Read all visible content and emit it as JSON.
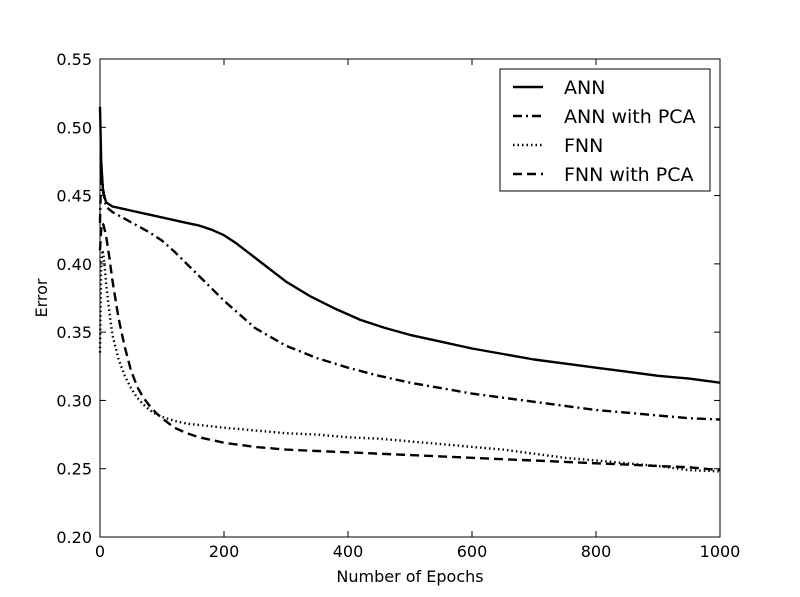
{
  "chart_data": {
    "type": "line",
    "xlabel": "Number of Epochs",
    "ylabel": "Error",
    "xlim": [
      0,
      1000
    ],
    "ylim": [
      0.2,
      0.55
    ],
    "xticks": [
      0,
      200,
      400,
      600,
      800,
      1000
    ],
    "xtick_labels": [
      "0",
      "200",
      "400",
      "600",
      "800",
      "1000"
    ],
    "yticks": [
      0.2,
      0.25,
      0.3,
      0.35,
      0.4,
      0.45,
      0.5,
      0.55
    ],
    "ytick_labels": [
      "0.20",
      "0.25",
      "0.30",
      "0.35",
      "0.40",
      "0.45",
      "0.50",
      "0.55"
    ],
    "grid": false,
    "legend_position": "top-right",
    "series": [
      {
        "name": "ANN",
        "color": "#000000",
        "style": "solid",
        "x": [
          0,
          2,
          5,
          10,
          20,
          40,
          60,
          80,
          100,
          120,
          140,
          160,
          180,
          200,
          220,
          240,
          260,
          280,
          300,
          340,
          380,
          420,
          460,
          500,
          550,
          600,
          650,
          700,
          750,
          800,
          850,
          900,
          950,
          1000
        ],
        "y": [
          0.515,
          0.475,
          0.452,
          0.445,
          0.442,
          0.44,
          0.438,
          0.436,
          0.434,
          0.432,
          0.43,
          0.428,
          0.425,
          0.421,
          0.415,
          0.408,
          0.401,
          0.394,
          0.387,
          0.376,
          0.367,
          0.359,
          0.353,
          0.348,
          0.343,
          0.338,
          0.334,
          0.33,
          0.327,
          0.324,
          0.321,
          0.318,
          0.316,
          0.313
        ]
      },
      {
        "name": "ANN with PCA",
        "color": "#000000",
        "style": "dashdot",
        "x": [
          0,
          2,
          5,
          8,
          12,
          20,
          40,
          60,
          80,
          100,
          120,
          140,
          160,
          180,
          200,
          250,
          300,
          350,
          400,
          450,
          500,
          550,
          600,
          650,
          700,
          750,
          800,
          850,
          900,
          950,
          1000
        ],
        "y": [
          0.43,
          0.47,
          0.455,
          0.445,
          0.441,
          0.438,
          0.433,
          0.428,
          0.423,
          0.417,
          0.409,
          0.4,
          0.391,
          0.382,
          0.373,
          0.353,
          0.34,
          0.331,
          0.324,
          0.318,
          0.313,
          0.309,
          0.305,
          0.302,
          0.299,
          0.296,
          0.293,
          0.291,
          0.289,
          0.287,
          0.286
        ]
      },
      {
        "name": "FNN",
        "color": "#000000",
        "style": "dotted",
        "x": [
          0,
          2,
          4,
          6,
          8,
          10,
          15,
          20,
          30,
          40,
          50,
          60,
          70,
          80,
          90,
          100,
          120,
          140,
          160,
          180,
          200,
          250,
          300,
          350,
          400,
          450,
          500,
          550,
          600,
          650,
          700,
          750,
          800,
          850,
          900,
          950,
          1000
        ],
        "y": [
          0.335,
          0.4,
          0.41,
          0.405,
          0.395,
          0.385,
          0.365,
          0.348,
          0.33,
          0.318,
          0.309,
          0.302,
          0.297,
          0.293,
          0.29,
          0.288,
          0.285,
          0.283,
          0.282,
          0.281,
          0.28,
          0.278,
          0.276,
          0.275,
          0.273,
          0.272,
          0.27,
          0.268,
          0.266,
          0.264,
          0.261,
          0.258,
          0.256,
          0.254,
          0.252,
          0.249,
          0.248
        ]
      },
      {
        "name": "FNN with PCA",
        "color": "#000000",
        "style": "dashed",
        "x": [
          0,
          2,
          4,
          6,
          10,
          15,
          20,
          30,
          40,
          50,
          60,
          70,
          80,
          90,
          100,
          120,
          140,
          160,
          180,
          200,
          250,
          300,
          350,
          400,
          450,
          500,
          550,
          600,
          650,
          700,
          750,
          800,
          850,
          900,
          950,
          1000
        ],
        "y": [
          0.41,
          0.425,
          0.43,
          0.428,
          0.42,
          0.405,
          0.388,
          0.36,
          0.339,
          0.322,
          0.31,
          0.302,
          0.296,
          0.291,
          0.287,
          0.28,
          0.276,
          0.273,
          0.271,
          0.269,
          0.266,
          0.264,
          0.263,
          0.262,
          0.261,
          0.26,
          0.259,
          0.258,
          0.257,
          0.256,
          0.255,
          0.254,
          0.253,
          0.252,
          0.251,
          0.249
        ]
      }
    ]
  }
}
